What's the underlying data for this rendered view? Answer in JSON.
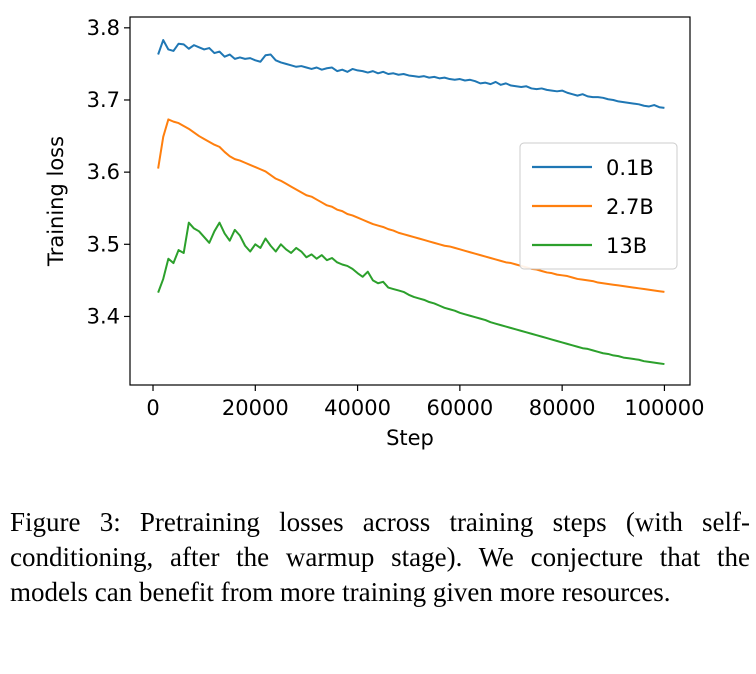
{
  "chart_data": {
    "type": "line",
    "xlabel": "Step",
    "ylabel": "Training loss",
    "xlim": [
      -4500,
      105000
    ],
    "ylim": [
      3.305,
      3.815
    ],
    "xticks": [
      0,
      20000,
      40000,
      60000,
      80000,
      100000
    ],
    "yticks": [
      3.4,
      3.5,
      3.6,
      3.7,
      3.8
    ],
    "grid": false,
    "legend_position": "center-right",
    "series": [
      {
        "name": "0.1B",
        "color": "#1f77b4",
        "x": [
          1000,
          2000,
          3000,
          4000,
          5000,
          6000,
          7000,
          8000,
          9000,
          10000,
          11000,
          12000,
          13000,
          14000,
          15000,
          16000,
          17000,
          18000,
          19000,
          20000,
          21000,
          22000,
          23000,
          24000,
          25000,
          26000,
          27000,
          28000,
          29000,
          30000,
          31000,
          32000,
          33000,
          34000,
          35000,
          36000,
          37000,
          38000,
          39000,
          40000,
          41000,
          42000,
          43000,
          44000,
          45000,
          46000,
          47000,
          48000,
          49000,
          50000,
          51000,
          52000,
          53000,
          54000,
          55000,
          56000,
          57000,
          58000,
          59000,
          60000,
          61000,
          62000,
          63000,
          64000,
          65000,
          66000,
          67000,
          68000,
          69000,
          70000,
          71000,
          72000,
          73000,
          74000,
          75000,
          76000,
          77000,
          78000,
          79000,
          80000,
          81000,
          82000,
          83000,
          84000,
          85000,
          86000,
          87000,
          88000,
          89000,
          90000,
          91000,
          92000,
          93000,
          94000,
          95000,
          96000,
          97000,
          98000,
          99000,
          100000
        ],
        "y": [
          3.763,
          3.783,
          3.77,
          3.768,
          3.778,
          3.777,
          3.771,
          3.776,
          3.773,
          3.77,
          3.772,
          3.765,
          3.767,
          3.76,
          3.763,
          3.757,
          3.759,
          3.757,
          3.758,
          3.755,
          3.753,
          3.762,
          3.763,
          3.755,
          3.752,
          3.75,
          3.748,
          3.746,
          3.747,
          3.745,
          3.743,
          3.745,
          3.742,
          3.744,
          3.745,
          3.74,
          3.742,
          3.739,
          3.743,
          3.741,
          3.74,
          3.738,
          3.74,
          3.737,
          3.739,
          3.736,
          3.737,
          3.735,
          3.736,
          3.734,
          3.733,
          3.732,
          3.733,
          3.731,
          3.732,
          3.73,
          3.731,
          3.729,
          3.728,
          3.729,
          3.727,
          3.728,
          3.726,
          3.723,
          3.724,
          3.722,
          3.725,
          3.721,
          3.723,
          3.72,
          3.719,
          3.718,
          3.719,
          3.716,
          3.715,
          3.716,
          3.714,
          3.713,
          3.712,
          3.713,
          3.71,
          3.708,
          3.706,
          3.708,
          3.705,
          3.704,
          3.704,
          3.703,
          3.701,
          3.7,
          3.698,
          3.697,
          3.696,
          3.695,
          3.694,
          3.692,
          3.691,
          3.693,
          3.69,
          3.689
        ]
      },
      {
        "name": "2.7B",
        "color": "#ff7f0e",
        "x": [
          1000,
          2000,
          3000,
          4000,
          5000,
          6000,
          7000,
          8000,
          9000,
          10000,
          11000,
          12000,
          13000,
          14000,
          15000,
          16000,
          17000,
          18000,
          19000,
          20000,
          21000,
          22000,
          23000,
          24000,
          25000,
          26000,
          27000,
          28000,
          29000,
          30000,
          31000,
          32000,
          33000,
          34000,
          35000,
          36000,
          37000,
          38000,
          39000,
          40000,
          41000,
          42000,
          43000,
          44000,
          45000,
          46000,
          47000,
          48000,
          49000,
          50000,
          51000,
          52000,
          53000,
          54000,
          55000,
          56000,
          57000,
          58000,
          59000,
          60000,
          61000,
          62000,
          63000,
          64000,
          65000,
          66000,
          67000,
          68000,
          69000,
          70000,
          71000,
          72000,
          73000,
          74000,
          75000,
          76000,
          77000,
          78000,
          79000,
          80000,
          81000,
          82000,
          83000,
          84000,
          85000,
          86000,
          87000,
          88000,
          89000,
          90000,
          91000,
          92000,
          93000,
          94000,
          95000,
          96000,
          97000,
          98000,
          99000,
          100000
        ],
        "y": [
          3.605,
          3.649,
          3.673,
          3.67,
          3.668,
          3.664,
          3.66,
          3.655,
          3.65,
          3.646,
          3.642,
          3.638,
          3.635,
          3.628,
          3.622,
          3.618,
          3.616,
          3.613,
          3.61,
          3.607,
          3.604,
          3.601,
          3.596,
          3.591,
          3.588,
          3.584,
          3.58,
          3.576,
          3.572,
          3.568,
          3.566,
          3.562,
          3.558,
          3.554,
          3.552,
          3.548,
          3.546,
          3.542,
          3.54,
          3.537,
          3.534,
          3.531,
          3.528,
          3.526,
          3.524,
          3.521,
          3.519,
          3.516,
          3.514,
          3.512,
          3.51,
          3.508,
          3.506,
          3.504,
          3.502,
          3.5,
          3.498,
          3.497,
          3.495,
          3.493,
          3.491,
          3.489,
          3.487,
          3.485,
          3.483,
          3.481,
          3.479,
          3.477,
          3.475,
          3.474,
          3.472,
          3.47,
          3.468,
          3.466,
          3.465,
          3.463,
          3.461,
          3.46,
          3.458,
          3.457,
          3.456,
          3.454,
          3.452,
          3.451,
          3.45,
          3.449,
          3.447,
          3.446,
          3.445,
          3.444,
          3.443,
          3.442,
          3.441,
          3.44,
          3.439,
          3.438,
          3.437,
          3.436,
          3.435,
          3.434
        ]
      },
      {
        "name": "13B",
        "color": "#2ca02c",
        "x": [
          1000,
          2000,
          3000,
          4000,
          5000,
          6000,
          7000,
          8000,
          9000,
          10000,
          11000,
          12000,
          13000,
          14000,
          15000,
          16000,
          17000,
          18000,
          19000,
          20000,
          21000,
          22000,
          23000,
          24000,
          25000,
          26000,
          27000,
          28000,
          29000,
          30000,
          31000,
          32000,
          33000,
          34000,
          35000,
          36000,
          37000,
          38000,
          39000,
          40000,
          41000,
          42000,
          43000,
          44000,
          45000,
          46000,
          47000,
          48000,
          49000,
          50000,
          51000,
          52000,
          53000,
          54000,
          55000,
          56000,
          57000,
          58000,
          59000,
          60000,
          61000,
          62000,
          63000,
          64000,
          65000,
          66000,
          67000,
          68000,
          69000,
          70000,
          71000,
          72000,
          73000,
          74000,
          75000,
          76000,
          77000,
          78000,
          79000,
          80000,
          81000,
          82000,
          83000,
          84000,
          85000,
          86000,
          87000,
          88000,
          89000,
          90000,
          91000,
          92000,
          93000,
          94000,
          95000,
          96000,
          97000,
          98000,
          99000,
          100000
        ],
        "y": [
          3.433,
          3.452,
          3.48,
          3.474,
          3.492,
          3.488,
          3.53,
          3.522,
          3.518,
          3.51,
          3.502,
          3.518,
          3.53,
          3.515,
          3.505,
          3.52,
          3.512,
          3.498,
          3.49,
          3.5,
          3.495,
          3.508,
          3.498,
          3.49,
          3.5,
          3.493,
          3.488,
          3.495,
          3.49,
          3.482,
          3.486,
          3.48,
          3.485,
          3.478,
          3.481,
          3.475,
          3.472,
          3.47,
          3.466,
          3.46,
          3.455,
          3.462,
          3.45,
          3.446,
          3.448,
          3.44,
          3.438,
          3.436,
          3.434,
          3.43,
          3.427,
          3.425,
          3.423,
          3.42,
          3.418,
          3.415,
          3.412,
          3.41,
          3.408,
          3.405,
          3.403,
          3.401,
          3.399,
          3.397,
          3.395,
          3.392,
          3.39,
          3.388,
          3.386,
          3.384,
          3.382,
          3.38,
          3.378,
          3.376,
          3.374,
          3.372,
          3.37,
          3.368,
          3.366,
          3.364,
          3.362,
          3.36,
          3.358,
          3.356,
          3.355,
          3.353,
          3.351,
          3.349,
          3.348,
          3.346,
          3.345,
          3.343,
          3.342,
          3.341,
          3.34,
          3.338,
          3.337,
          3.336,
          3.335,
          3.334
        ]
      }
    ]
  },
  "caption": "Figure 3: Pretraining losses across training steps (with self-conditioning, after the warmup stage). We conjecture that the models can benefit from more training given more resources."
}
